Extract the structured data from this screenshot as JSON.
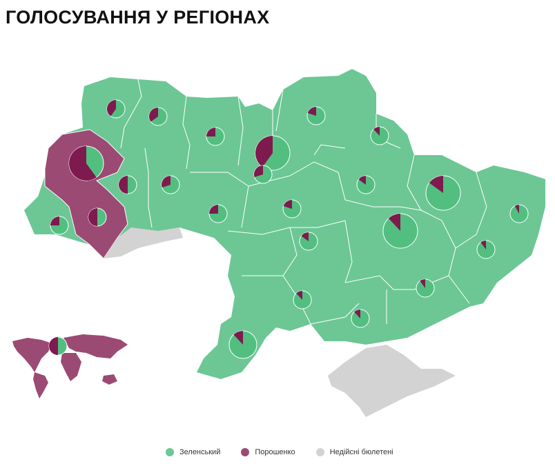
{
  "title": "ГОЛОСУВАННЯ У РЕГІОНАХ",
  "colors": {
    "zelensky": "#6cc795",
    "poroshenko": "#9b4a74",
    "invalid": "#d3d3d3",
    "pie_zelensky": "#52bf80",
    "pie_poroshenko": "#7e1a4e"
  },
  "legend": [
    {
      "label": "Зеленський",
      "color": "#6cc795"
    },
    {
      "label": "Порошенко",
      "color": "#9b4a74"
    },
    {
      "label": "Недійсні бюлетені",
      "color": "#d3d3d3"
    }
  ],
  "pies": [
    {
      "poroshenko_share": 0.4,
      "size": "small"
    },
    {
      "poroshenko_share": 0.35,
      "size": "small"
    },
    {
      "poroshenko_share": 0.25,
      "size": "small"
    },
    {
      "poroshenko_share": 0.4,
      "size": "large"
    },
    {
      "poroshenko_share": 0.2,
      "size": "small"
    },
    {
      "poroshenko_share": 0.12,
      "size": "small"
    },
    {
      "poroshenko_share": 0.6,
      "size": "large"
    },
    {
      "poroshenko_share": 0.5,
      "size": "small"
    },
    {
      "poroshenko_share": 0.3,
      "size": "small"
    },
    {
      "poroshenko_share": 0.3,
      "size": "small"
    },
    {
      "poroshenko_share": 0.15,
      "size": "small"
    },
    {
      "poroshenko_share": 0.15,
      "size": "large"
    },
    {
      "poroshenko_share": 0.08,
      "size": "small"
    },
    {
      "poroshenko_share": 0.5,
      "size": "small"
    },
    {
      "poroshenko_share": 0.25,
      "size": "small"
    },
    {
      "poroshenko_share": 0.25,
      "size": "small"
    },
    {
      "poroshenko_share": 0.2,
      "size": "small"
    },
    {
      "poroshenko_share": 0.12,
      "size": "large"
    },
    {
      "poroshenko_share": 0.15,
      "size": "small"
    },
    {
      "poroshenko_share": 0.1,
      "size": "small"
    },
    {
      "poroshenko_share": 0.1,
      "size": "small"
    },
    {
      "poroshenko_share": 0.12,
      "size": "small"
    },
    {
      "poroshenko_share": 0.12,
      "size": "small"
    },
    {
      "poroshenko_share": 0.12,
      "size": "medium"
    },
    {
      "poroshenko_share": 0.5,
      "size": "small"
    }
  ]
}
